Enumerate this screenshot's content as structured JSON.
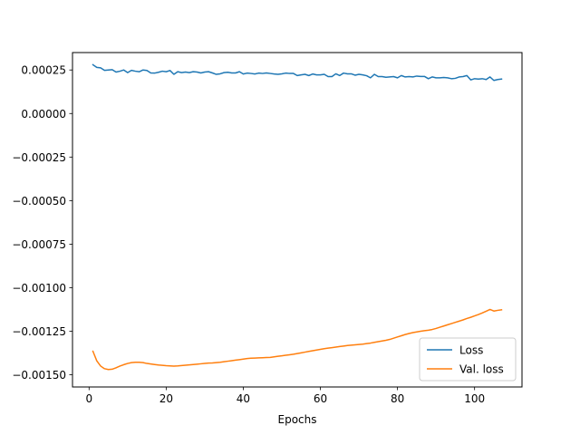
{
  "chart_data": {
    "type": "line",
    "title": "",
    "xlabel": "Epochs",
    "ylabel": "",
    "xlim": [
      -4.3,
      112.3
    ],
    "ylim": [
      -0.00157,
      0.00035
    ],
    "xticks": [
      0,
      20,
      40,
      60,
      80,
      100
    ],
    "xtick_labels": [
      "0",
      "20",
      "40",
      "60",
      "80",
      "100"
    ],
    "yticks": [
      0.00025,
      0.0,
      -0.00025,
      -0.0005,
      -0.00075,
      -0.001,
      -0.00125,
      -0.0015
    ],
    "ytick_labels": [
      "0.00025",
      "0.00000",
      "−0.00025",
      "−0.00050",
      "−0.00075",
      "−0.00100",
      "−0.00125",
      "−0.00150"
    ],
    "grid": false,
    "legend_position": "lower-right",
    "series": [
      {
        "name": "Loss",
        "color": "#1f77b4",
        "x": [
          1,
          2,
          3,
          4,
          5,
          6,
          7,
          8,
          9,
          10,
          11,
          12,
          13,
          14,
          15,
          16,
          17,
          18,
          19,
          20,
          21,
          22,
          23,
          24,
          25,
          26,
          27,
          28,
          29,
          30,
          31,
          32,
          33,
          34,
          35,
          36,
          37,
          38,
          39,
          40,
          41,
          42,
          43,
          44,
          45,
          46,
          47,
          48,
          49,
          50,
          51,
          52,
          53,
          54,
          55,
          56,
          57,
          58,
          59,
          60,
          61,
          62,
          63,
          64,
          65,
          66,
          67,
          68,
          69,
          70,
          71,
          72,
          73,
          74,
          75,
          76,
          77,
          78,
          79,
          80,
          81,
          82,
          83,
          84,
          85,
          86,
          87,
          88,
          89,
          90,
          91,
          92,
          93,
          94,
          95,
          96,
          97,
          98,
          99,
          100,
          101,
          102,
          103,
          104,
          105,
          106,
          107
        ],
        "y": [
          0.00028,
          0.000265,
          0.000262,
          0.000248,
          0.00025,
          0.000252,
          0.000238,
          0.000243,
          0.00025,
          0.000235,
          0.000248,
          0.000243,
          0.00024,
          0.00025,
          0.000247,
          0.000233,
          0.000232,
          0.000237,
          0.000243,
          0.00024,
          0.000247,
          0.000225,
          0.00024,
          0.000235,
          0.000238,
          0.000235,
          0.00024,
          0.000238,
          0.000233,
          0.000238,
          0.00024,
          0.000233,
          0.000225,
          0.000228,
          0.000235,
          0.000237,
          0.000233,
          0.000233,
          0.00024,
          0.000227,
          0.000232,
          0.00023,
          0.000227,
          0.000232,
          0.00023,
          0.000233,
          0.00023,
          0.000227,
          0.000225,
          0.000228,
          0.000232,
          0.00023,
          0.00023,
          0.000218,
          0.000222,
          0.000225,
          0.000218,
          0.000227,
          0.000222,
          0.000222,
          0.000225,
          0.000212,
          0.000212,
          0.000228,
          0.000218,
          0.000232,
          0.000228,
          0.000228,
          0.00022,
          0.000225,
          0.000222,
          0.000217,
          0.000205,
          0.000225,
          0.000212,
          0.000212,
          0.000208,
          0.00021,
          0.000212,
          0.000205,
          0.000218,
          0.00021,
          0.000212,
          0.00021,
          0.000215,
          0.000213,
          0.000213,
          0.0002,
          0.00021,
          0.000205,
          0.000205,
          0.000207,
          0.000205,
          0.0002,
          0.000202,
          0.00021,
          0.000212,
          0.000218,
          0.000193,
          0.0002,
          0.000198,
          0.0002,
          0.000195,
          0.00021,
          0.00019,
          0.000195,
          0.000198
        ]
      },
      {
        "name": "Val. loss",
        "color": "#ff7f0e",
        "x": [
          1,
          2,
          3,
          4,
          5,
          6,
          7,
          8,
          9,
          10,
          11,
          12,
          13,
          14,
          15,
          16,
          17,
          18,
          19,
          20,
          21,
          22,
          23,
          24,
          25,
          26,
          27,
          28,
          29,
          30,
          31,
          32,
          33,
          34,
          35,
          36,
          37,
          38,
          39,
          40,
          41,
          42,
          43,
          44,
          45,
          46,
          47,
          48,
          49,
          50,
          51,
          52,
          53,
          54,
          55,
          56,
          57,
          58,
          59,
          60,
          61,
          62,
          63,
          64,
          65,
          66,
          67,
          68,
          69,
          70,
          71,
          72,
          73,
          74,
          75,
          76,
          77,
          78,
          79,
          80,
          81,
          82,
          83,
          84,
          85,
          86,
          87,
          88,
          89,
          90,
          91,
          92,
          93,
          94,
          95,
          96,
          97,
          98,
          99,
          100,
          101,
          102,
          103,
          104,
          105,
          106,
          107
        ],
        "y": [
          -0.001365,
          -0.00142,
          -0.00145,
          -0.001465,
          -0.00147,
          -0.001468,
          -0.00146,
          -0.00145,
          -0.001442,
          -0.001435,
          -0.00143,
          -0.001428,
          -0.001428,
          -0.00143,
          -0.001435,
          -0.001438,
          -0.001441,
          -0.001444,
          -0.001446,
          -0.001448,
          -0.001449,
          -0.00145,
          -0.001449,
          -0.001447,
          -0.001445,
          -0.001443,
          -0.001441,
          -0.001439,
          -0.001437,
          -0.001435,
          -0.001433,
          -0.001432,
          -0.00143,
          -0.001428,
          -0.001425,
          -0.001422,
          -0.001419,
          -0.001416,
          -0.001413,
          -0.00141,
          -0.001407,
          -0.001405,
          -0.001404,
          -0.001403,
          -0.001402,
          -0.001401,
          -0.0014,
          -0.001397,
          -0.001394,
          -0.001391,
          -0.001388,
          -0.001385,
          -0.001382,
          -0.001378,
          -0.001374,
          -0.00137,
          -0.001366,
          -0.001362,
          -0.001358,
          -0.001354,
          -0.00135,
          -0.001347,
          -0.001344,
          -0.001341,
          -0.001338,
          -0.001335,
          -0.001332,
          -0.00133,
          -0.001328,
          -0.001326,
          -0.001324,
          -0.001321,
          -0.001318,
          -0.001314,
          -0.00131,
          -0.001306,
          -0.001302,
          -0.001297,
          -0.00129,
          -0.001283,
          -0.001276,
          -0.001269,
          -0.001263,
          -0.001258,
          -0.001254,
          -0.00125,
          -0.001247,
          -0.001244,
          -0.00124,
          -0.001234,
          -0.001227,
          -0.00122,
          -0.001213,
          -0.001206,
          -0.001199,
          -0.001192,
          -0.001185,
          -0.001177,
          -0.00117,
          -0.001162,
          -0.001154,
          -0.001145,
          -0.001135,
          -0.001125,
          -0.001134,
          -0.00113,
          -0.001127
        ]
      }
    ]
  }
}
